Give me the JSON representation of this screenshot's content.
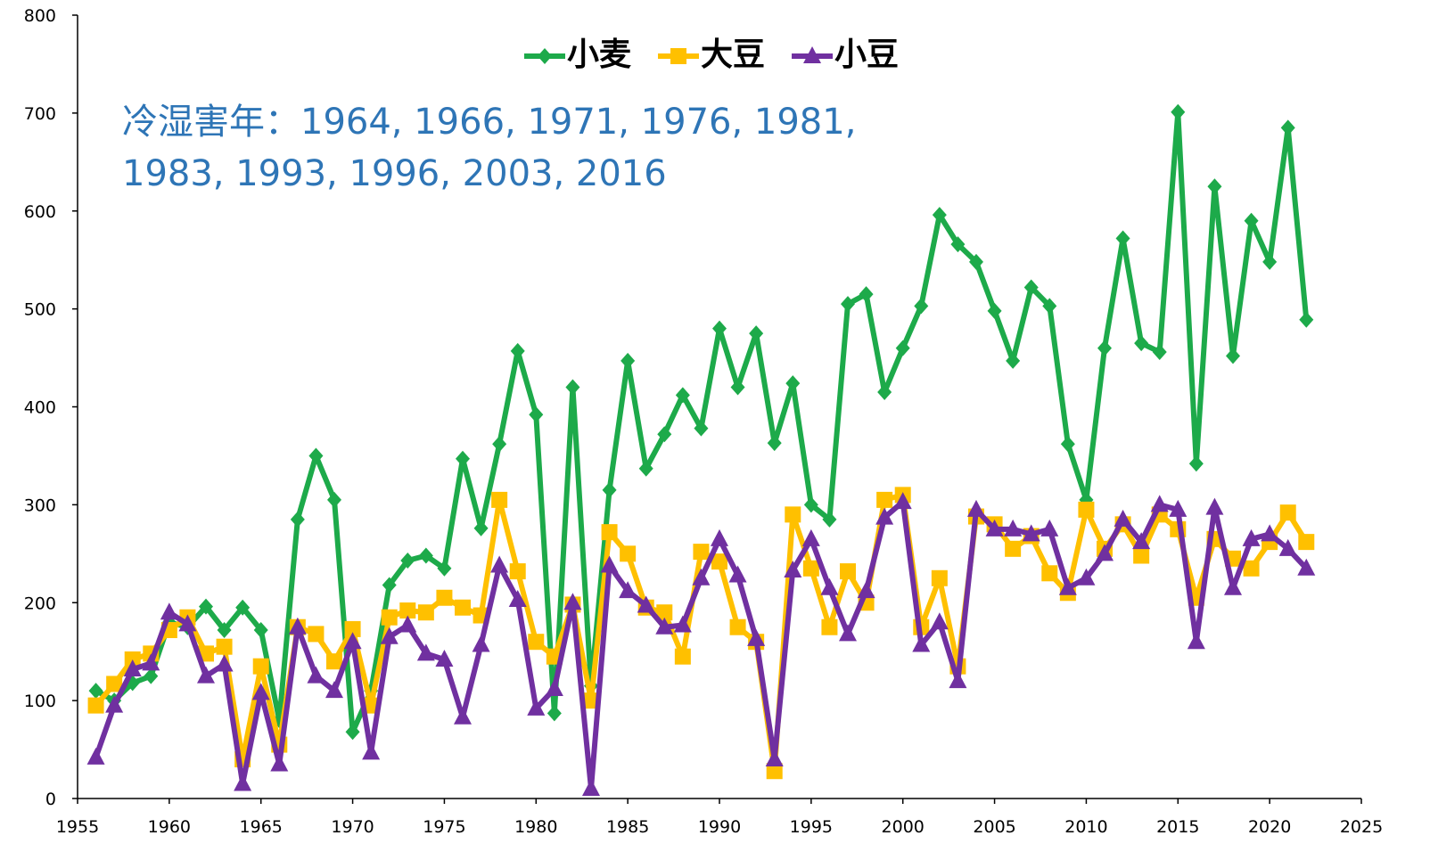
{
  "chart_data": {
    "type": "line",
    "annotation": [
      "冷湿害年：1964, 1966, 1971, 1976, 1981,",
      "1983, 1993, 1996, 2003, 2016"
    ],
    "x": [
      1956,
      1957,
      1958,
      1959,
      1960,
      1961,
      1962,
      1963,
      1964,
      1965,
      1966,
      1967,
      1968,
      1969,
      1970,
      1971,
      1972,
      1973,
      1974,
      1975,
      1976,
      1977,
      1978,
      1979,
      1980,
      1981,
      1982,
      1983,
      1984,
      1985,
      1986,
      1987,
      1988,
      1989,
      1990,
      1991,
      1992,
      1993,
      1994,
      1995,
      1996,
      1997,
      1998,
      1999,
      2000,
      2001,
      2002,
      2003,
      2004,
      2005,
      2006,
      2007,
      2008,
      2009,
      2010,
      2011,
      2012,
      2013,
      2014,
      2015,
      2016,
      2017,
      2018,
      2019,
      2020,
      2021,
      2022
    ],
    "series": [
      {
        "name": "小麦",
        "color": "#1daa4a",
        "marker": "diamond",
        "values": [
          110,
          100,
          118,
          125,
          180,
          175,
          196,
          172,
          195,
          172,
          80,
          285,
          350,
          305,
          68,
          110,
          218,
          243,
          248,
          235,
          347,
          276,
          362,
          457,
          392,
          87,
          420,
          115,
          315,
          447,
          337,
          372,
          412,
          378,
          480,
          420,
          475,
          363,
          424,
          300,
          285,
          505,
          515,
          415,
          460,
          503,
          596,
          566,
          548,
          498,
          447,
          522,
          503,
          362,
          305,
          460,
          572,
          465,
          456,
          701,
          342,
          625,
          452,
          590,
          548,
          685,
          489
        ]
      },
      {
        "name": "大豆",
        "color": "#ffc000",
        "marker": "square",
        "values": [
          95,
          117,
          142,
          148,
          172,
          185,
          148,
          155,
          40,
          135,
          55,
          175,
          168,
          140,
          173,
          95,
          185,
          192,
          190,
          205,
          195,
          187,
          305,
          232,
          160,
          145,
          198,
          100,
          272,
          250,
          195,
          190,
          145,
          252,
          242,
          175,
          160,
          28,
          290,
          235,
          175,
          232,
          200,
          305,
          310,
          175,
          225,
          135,
          288,
          280,
          255,
          268,
          230,
          210,
          295,
          255,
          280,
          248,
          290,
          275,
          205,
          265,
          245,
          235,
          262,
          292,
          262
        ]
      },
      {
        "name": "小豆",
        "color": "#7030a0",
        "marker": "triangle",
        "values": [
          42,
          95,
          132,
          138,
          190,
          178,
          125,
          137,
          15,
          108,
          35,
          175,
          125,
          110,
          160,
          47,
          165,
          177,
          148,
          142,
          83,
          157,
          238,
          203,
          92,
          112,
          200,
          10,
          238,
          212,
          197,
          175,
          177,
          225,
          265,
          228,
          163,
          40,
          233,
          265,
          215,
          168,
          212,
          287,
          303,
          157,
          180,
          120,
          295,
          275,
          275,
          270,
          275,
          215,
          225,
          250,
          285,
          262,
          300,
          295,
          160,
          297,
          215,
          265,
          270,
          255,
          235
        ]
      }
    ],
    "xlim": [
      1955,
      2025
    ],
    "xticks": [
      1955,
      1960,
      1965,
      1970,
      1975,
      1980,
      1985,
      1990,
      1995,
      2000,
      2005,
      2010,
      2015,
      2020,
      2025
    ],
    "ylim": [
      0,
      800
    ],
    "yticks": [
      0,
      100,
      200,
      300,
      400,
      500,
      600,
      700,
      800
    ]
  }
}
